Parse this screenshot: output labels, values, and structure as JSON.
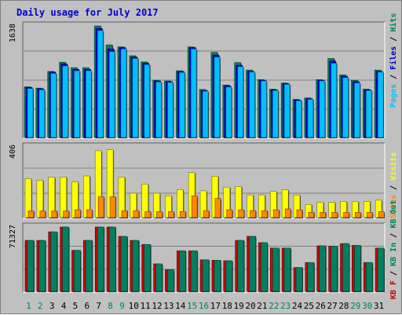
{
  "title": "Daily usage for July 2017",
  "colors": {
    "background": "#c0c0c0",
    "title": "#0000cc",
    "hits": "#008060",
    "files": "#0000cc",
    "pages": "#00c0ff",
    "visits": "#ffff00",
    "sites": "#ff8800",
    "kb_in": "#008060",
    "kb_out": "#008060",
    "kb_f": "#cc0000"
  },
  "chart_data": [
    {
      "type": "bar",
      "name": "hits-files-pages",
      "ymax_label": "1638",
      "ylim": [
        0,
        1638
      ],
      "legend": [
        "Pages",
        "Files",
        "Hits"
      ],
      "categories": [
        "1",
        "2",
        "3",
        "4",
        "5",
        "6",
        "7",
        "8",
        "9",
        "10",
        "11",
        "12",
        "13",
        "14",
        "15",
        "16",
        "17",
        "18",
        "19",
        "20",
        "21",
        "22",
        "23",
        "24",
        "25",
        "26",
        "27",
        "28",
        "29",
        "30",
        "31"
      ],
      "series": [
        {
          "name": "Hits",
          "values": [
            745,
            725,
            970,
            1105,
            1025,
            1025,
            1638,
            1360,
            1330,
            1200,
            1110,
            840,
            830,
            980,
            1330,
            705,
            1250,
            770,
            1100,
            990,
            850,
            710,
            800,
            560,
            580,
            850,
            1160,
            920,
            840,
            710,
            990
          ]
        },
        {
          "name": "Files",
          "values": [
            735,
            715,
            960,
            1080,
            1000,
            1000,
            1600,
            1300,
            1320,
            1180,
            1090,
            830,
            820,
            970,
            1320,
            690,
            1210,
            760,
            1060,
            970,
            840,
            700,
            790,
            550,
            570,
            840,
            1120,
            900,
            820,
            700,
            970
          ]
        },
        {
          "name": "Pages",
          "values": [
            720,
            700,
            940,
            1050,
            980,
            980,
            1570,
            1260,
            1300,
            1160,
            1070,
            815,
            810,
            955,
            1300,
            680,
            1180,
            740,
            1040,
            960,
            830,
            690,
            780,
            540,
            560,
            830,
            1090,
            880,
            800,
            690,
            960
          ]
        }
      ]
    },
    {
      "type": "bar",
      "name": "visits-sites",
      "ymax_label": "406",
      "ylim": [
        0,
        406
      ],
      "legend": [
        "Sites",
        "Visits"
      ],
      "categories": [
        "1",
        "2",
        "3",
        "4",
        "5",
        "6",
        "7",
        "8",
        "9",
        "10",
        "11",
        "12",
        "13",
        "14",
        "15",
        "16",
        "17",
        "18",
        "19",
        "20",
        "21",
        "22",
        "23",
        "24",
        "25",
        "26",
        "27",
        "28",
        "29",
        "30",
        "31"
      ],
      "series": [
        {
          "name": "Visits",
          "values": [
            224,
            214,
            233,
            233,
            205,
            239,
            384,
            390,
            233,
            140,
            192,
            140,
            125,
            160,
            258,
            154,
            237,
            175,
            178,
            130,
            130,
            150,
            160,
            130,
            75,
            88,
            88,
            93,
            93,
            93,
            100
          ]
        },
        {
          "name": "Sites",
          "values": [
            38,
            38,
            38,
            38,
            45,
            45,
            120,
            120,
            40,
            40,
            35,
            35,
            35,
            35,
            125,
            40,
            110,
            45,
            45,
            40,
            40,
            45,
            50,
            45,
            30,
            30,
            30,
            30,
            30,
            30,
            35
          ]
        }
      ]
    },
    {
      "type": "bar",
      "name": "kbytes",
      "ymax_label": "71327",
      "ylim": [
        0,
        71327
      ],
      "legend": [
        "KB F",
        "KB In",
        "KB Out"
      ],
      "categories": [
        "1",
        "2",
        "3",
        "4",
        "5",
        "6",
        "7",
        "8",
        "9",
        "10",
        "11",
        "12",
        "13",
        "14",
        "15",
        "16",
        "17",
        "18",
        "19",
        "20",
        "21",
        "22",
        "23",
        "24",
        "25",
        "26",
        "27",
        "28",
        "29",
        "30",
        "31"
      ],
      "series": [
        {
          "name": "KB F",
          "values": [
            56500,
            56500,
            66000,
            71327,
            45500,
            56500,
            71327,
            71327,
            61000,
            56500,
            52000,
            30500,
            24000,
            45000,
            45000,
            35000,
            34500,
            34000,
            56500,
            61000,
            54000,
            48000,
            48000,
            26500,
            32000,
            50500,
            50000,
            53000,
            51000,
            32000,
            48000
          ]
        },
        {
          "name": "KB Out",
          "values": [
            56500,
            56500,
            66000,
            71327,
            45500,
            56500,
            71327,
            71327,
            61000,
            56500,
            52000,
            30500,
            24000,
            45000,
            45000,
            35000,
            34500,
            34000,
            56500,
            61000,
            54000,
            48000,
            48000,
            26500,
            32000,
            50500,
            50000,
            53000,
            51000,
            32000,
            48000
          ]
        }
      ]
    }
  ]
}
